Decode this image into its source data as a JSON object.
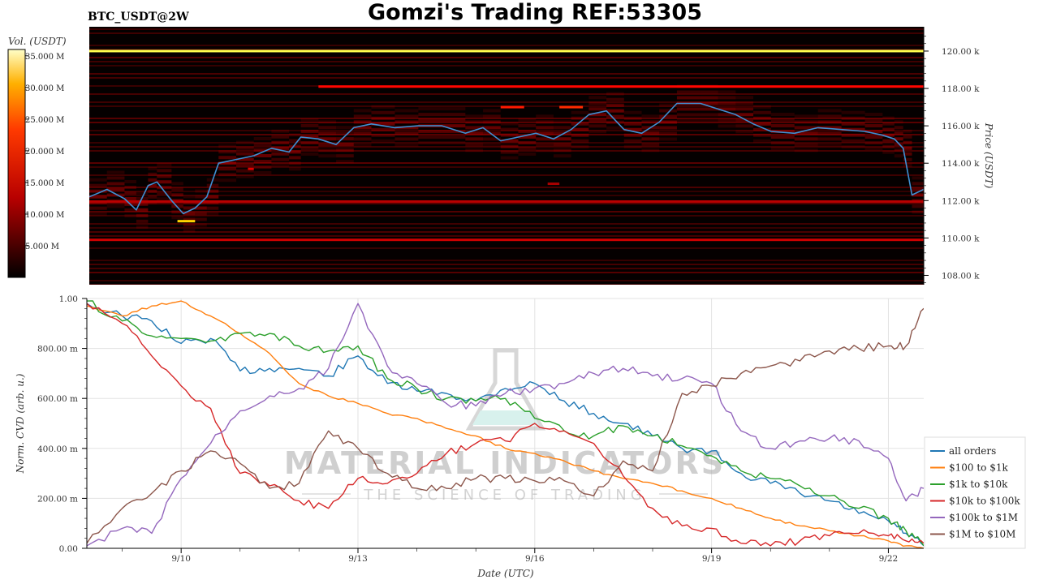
{
  "header": {
    "title": "Gomzi's Trading REF:53305",
    "symbol": "BTC_USDT@2W"
  },
  "watermark": {
    "line1": "MATERIAL INDICATORS",
    "line2": "THE SCIENCE OF TRADING"
  },
  "colorbar": {
    "label": "Vol. (USDT)",
    "ticks": [
      "35.000 M",
      "30.000 M",
      "25.000 M",
      "20.000 M",
      "15.000 M",
      "10.000 M",
      "5.000 M"
    ],
    "tick_values": [
      35,
      30,
      25,
      20,
      15,
      10,
      5
    ],
    "range": [
      0,
      36
    ],
    "colormap": "hot"
  },
  "chart_data": [
    {
      "type": "heatmap",
      "panel": "orderbook-heatmap",
      "ylabel": "Price (USDT)",
      "ylim": [
        107.5,
        121.3
      ],
      "ytick_values": [
        108,
        110,
        112,
        114,
        116,
        118,
        120
      ],
      "ytick_labels": [
        "108.00 k",
        "110.00 k",
        "112.00 k",
        "114.00 k",
        "116.00 k",
        "118.00 k",
        "120.00 k"
      ],
      "xlim": [
        8.4,
        22.6
      ],
      "liquidity_levels": [
        {
          "price": 120.0,
          "volume": 30,
          "from": 8.4,
          "to": 22.6
        },
        {
          "price": 118.1,
          "volume": 14,
          "from": 12.3,
          "to": 22.6
        },
        {
          "price": 117.0,
          "volume": 15,
          "from": 15.4,
          "to": 15.8
        },
        {
          "price": 117.0,
          "volume": 16,
          "from": 16.4,
          "to": 16.8
        },
        {
          "price": 111.95,
          "volume": 10,
          "from": 8.4,
          "to": 22.6
        },
        {
          "price": 110.9,
          "volume": 25,
          "from": 9.9,
          "to": 10.2
        },
        {
          "price": 109.9,
          "volume": 11,
          "from": 8.4,
          "to": 22.6
        },
        {
          "price": 113.7,
          "volume": 12,
          "from": 11.1,
          "to": 11.2
        },
        {
          "price": 112.9,
          "volume": 9,
          "from": 16.2,
          "to": 16.4
        }
      ],
      "price_series": {
        "name": "Price",
        "color": "#3f8fd2",
        "x": [
          8.4,
          8.7,
          9.0,
          9.2,
          9.4,
          9.55,
          9.8,
          10.0,
          10.2,
          10.4,
          10.6,
          10.9,
          11.2,
          11.5,
          11.8,
          12.0,
          12.3,
          12.6,
          12.9,
          13.2,
          13.6,
          14.0,
          14.4,
          14.8,
          15.1,
          15.4,
          15.7,
          16.0,
          16.3,
          16.6,
          16.9,
          17.2,
          17.5,
          17.8,
          18.1,
          18.4,
          18.8,
          19.1,
          19.4,
          19.7,
          20.0,
          20.4,
          20.8,
          21.2,
          21.6,
          21.9,
          22.1,
          22.25,
          22.4,
          22.6
        ],
        "y": [
          112.2,
          112.6,
          112.1,
          111.5,
          112.8,
          113.0,
          112.0,
          111.3,
          111.6,
          112.2,
          114.0,
          114.2,
          114.4,
          114.8,
          114.6,
          115.4,
          115.3,
          115.0,
          115.9,
          116.1,
          115.9,
          116.0,
          116.0,
          115.6,
          115.9,
          115.2,
          115.4,
          115.6,
          115.3,
          115.8,
          116.6,
          116.8,
          115.8,
          115.6,
          116.2,
          117.2,
          117.2,
          116.9,
          116.6,
          116.1,
          115.7,
          115.6,
          115.9,
          115.8,
          115.7,
          115.5,
          115.3,
          114.8,
          112.3,
          112.6
        ]
      }
    },
    {
      "type": "line",
      "panel": "cvd",
      "xlabel": "Date (UTC)",
      "ylabel": "Norm. CVD (arb. u.)",
      "ylim": [
        0,
        1
      ],
      "ytick_values": [
        0,
        0.2,
        0.4,
        0.6,
        0.8,
        1.0
      ],
      "ytick_labels": [
        "0.00",
        "200.00 m",
        "400.00 m",
        "600.00 m",
        "800.00 m",
        "1.00"
      ],
      "xlim": [
        8.4,
        22.6
      ],
      "xtick_values": [
        10,
        13,
        16,
        19,
        22
      ],
      "xtick_labels": [
        "9/10",
        "9/13",
        "9/16",
        "9/19",
        "9/22"
      ],
      "grid": true,
      "legend_position": "bottom-right",
      "x": [
        8.4,
        9.0,
        9.5,
        10.0,
        10.5,
        11.0,
        11.5,
        12.0,
        12.5,
        13.0,
        13.5,
        14.0,
        14.5,
        15.0,
        15.5,
        16.0,
        16.5,
        17.0,
        17.5,
        18.0,
        18.5,
        19.0,
        19.5,
        20.0,
        20.5,
        21.0,
        21.5,
        22.0,
        22.3,
        22.6
      ],
      "series": [
        {
          "name": "all orders",
          "color": "#1f77b4",
          "values": [
            0.98,
            0.93,
            0.91,
            0.82,
            0.84,
            0.71,
            0.72,
            0.72,
            0.69,
            0.77,
            0.66,
            0.63,
            0.62,
            0.59,
            0.64,
            0.66,
            0.59,
            0.54,
            0.5,
            0.45,
            0.4,
            0.39,
            0.3,
            0.26,
            0.22,
            0.19,
            0.14,
            0.11,
            0.06,
            0.01
          ]
        },
        {
          "name": "$100 to $1k",
          "color": "#ff7f0e",
          "values": [
            0.97,
            0.93,
            0.97,
            0.99,
            0.93,
            0.86,
            0.78,
            0.66,
            0.61,
            0.58,
            0.54,
            0.52,
            0.48,
            0.45,
            0.4,
            0.38,
            0.35,
            0.31,
            0.28,
            0.26,
            0.23,
            0.2,
            0.16,
            0.12,
            0.09,
            0.07,
            0.05,
            0.03,
            0.01,
            0.0
          ]
        },
        {
          "name": "$1k to $10k",
          "color": "#2ca02c",
          "values": [
            0.99,
            0.91,
            0.85,
            0.84,
            0.83,
            0.86,
            0.86,
            0.81,
            0.79,
            0.81,
            0.68,
            0.64,
            0.6,
            0.59,
            0.6,
            0.52,
            0.47,
            0.45,
            0.49,
            0.45,
            0.41,
            0.37,
            0.31,
            0.28,
            0.25,
            0.21,
            0.16,
            0.12,
            0.07,
            0.01
          ]
        },
        {
          "name": "$10k to $100k",
          "color": "#d62728",
          "values": [
            0.98,
            0.9,
            0.77,
            0.65,
            0.56,
            0.3,
            0.25,
            0.19,
            0.16,
            0.28,
            0.26,
            0.3,
            0.38,
            0.42,
            0.43,
            0.5,
            0.47,
            0.42,
            0.29,
            0.16,
            0.09,
            0.08,
            0.02,
            0.01,
            0.03,
            0.05,
            0.06,
            0.05,
            0.03,
            0.02
          ]
        },
        {
          "name": "$100k to $1M",
          "color": "#9467bd",
          "values": [
            0.01,
            0.08,
            0.06,
            0.28,
            0.42,
            0.55,
            0.61,
            0.64,
            0.72,
            0.98,
            0.73,
            0.66,
            0.58,
            0.57,
            0.62,
            0.64,
            0.66,
            0.7,
            0.72,
            0.69,
            0.68,
            0.66,
            0.47,
            0.4,
            0.43,
            0.44,
            0.43,
            0.36,
            0.19,
            0.24
          ]
        },
        {
          "name": "$1M to $10M",
          "color": "#8c564b",
          "values": [
            0.02,
            0.16,
            0.22,
            0.31,
            0.39,
            0.34,
            0.24,
            0.26,
            0.47,
            0.4,
            0.3,
            0.24,
            0.24,
            0.28,
            0.28,
            0.27,
            0.27,
            0.21,
            0.35,
            0.31,
            0.62,
            0.65,
            0.7,
            0.73,
            0.75,
            0.79,
            0.8,
            0.81,
            0.81,
            0.96
          ]
        }
      ]
    }
  ]
}
